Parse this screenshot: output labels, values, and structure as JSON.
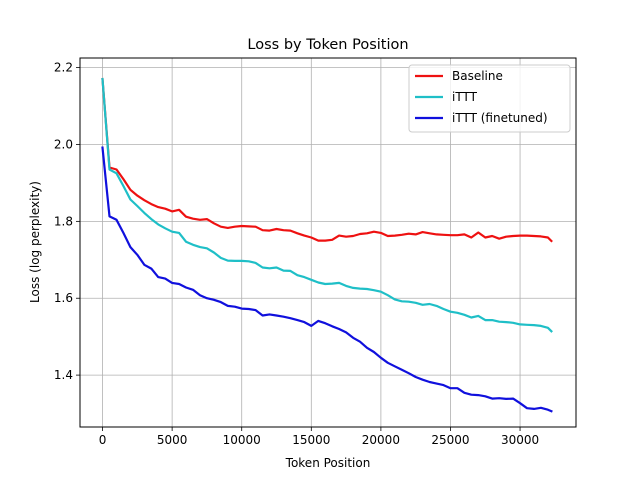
{
  "chart_data": {
    "type": "line",
    "title": "Loss by Token Position",
    "xlabel": "Token Position",
    "ylabel": "Loss (log perplexity)",
    "xlim": [
      -1620,
      34020
    ],
    "ylim": [
      1.265,
      2.225
    ],
    "xticks": [
      0,
      5000,
      10000,
      15000,
      20000,
      25000,
      30000
    ],
    "xtick_labels": [
      "0",
      "5000",
      "10000",
      "15000",
      "20000",
      "25000",
      "30000"
    ],
    "yticks": [
      1.4,
      1.6,
      1.8,
      2.0,
      2.2
    ],
    "ytick_labels": [
      "1.4",
      "1.6",
      "1.8",
      "2.0",
      "2.2"
    ],
    "grid": true,
    "legend_position": "upper right",
    "colors": {
      "Baseline": "#ee1111",
      "iTTT": "#1fbfc7",
      "iTTT (finetuned)": "#1010dd"
    },
    "series": [
      {
        "name": "Baseline",
        "color": "#ee1111",
        "x": [
          0,
          500,
          1000,
          1500,
          2000,
          2500,
          3000,
          3500,
          4000,
          4500,
          5000,
          5500,
          6000,
          6500,
          7000,
          7500,
          8000,
          8500,
          9000,
          9500,
          10000,
          10500,
          11000,
          11500,
          12000,
          12500,
          13000,
          13500,
          14000,
          14500,
          15000,
          15500,
          16000,
          16500,
          17000,
          17500,
          18000,
          18500,
          19000,
          19500,
          20000,
          20500,
          21000,
          21500,
          22000,
          22500,
          23000,
          23500,
          24000,
          24500,
          25000,
          25500,
          26000,
          26500,
          27000,
          27500,
          28000,
          28500,
          29000,
          29500,
          30000,
          30500,
          31000,
          31500,
          32000,
          32250
        ],
        "values": [
          2.17,
          1.94,
          1.935,
          1.91,
          1.882,
          1.867,
          1.855,
          1.845,
          1.837,
          1.833,
          1.826,
          1.83,
          1.812,
          1.807,
          1.804,
          1.806,
          1.795,
          1.786,
          1.783,
          1.786,
          1.788,
          1.787,
          1.786,
          1.777,
          1.776,
          1.78,
          1.777,
          1.776,
          1.769,
          1.763,
          1.758,
          1.75,
          1.75,
          1.752,
          1.763,
          1.76,
          1.762,
          1.767,
          1.769,
          1.773,
          1.77,
          1.762,
          1.763,
          1.765,
          1.768,
          1.766,
          1.772,
          1.769,
          1.766,
          1.765,
          1.764,
          1.764,
          1.766,
          1.758,
          1.771,
          1.758,
          1.762,
          1.755,
          1.76,
          1.762,
          1.763,
          1.763,
          1.762,
          1.761,
          1.758,
          1.749
        ]
      },
      {
        "name": "iTTT",
        "color": "#1fbfc7",
        "x": [
          0,
          500,
          1000,
          1500,
          2000,
          2500,
          3000,
          3500,
          4000,
          4500,
          5000,
          5500,
          6000,
          6500,
          7000,
          7500,
          8000,
          8500,
          9000,
          9500,
          10000,
          10500,
          11000,
          11500,
          12000,
          12500,
          13000,
          13500,
          14000,
          14500,
          15000,
          15500,
          16000,
          16500,
          17000,
          17500,
          18000,
          18500,
          19000,
          19500,
          20000,
          20500,
          21000,
          21500,
          22000,
          22500,
          23000,
          23500,
          24000,
          24500,
          25000,
          25500,
          26000,
          26500,
          27000,
          27500,
          28000,
          28500,
          29000,
          29500,
          30000,
          30500,
          31000,
          31500,
          32000,
          32250
        ],
        "values": [
          2.17,
          1.935,
          1.925,
          1.892,
          1.857,
          1.84,
          1.822,
          1.806,
          1.792,
          1.782,
          1.773,
          1.77,
          1.747,
          1.739,
          1.733,
          1.73,
          1.719,
          1.705,
          1.698,
          1.697,
          1.697,
          1.696,
          1.692,
          1.68,
          1.678,
          1.68,
          1.672,
          1.671,
          1.66,
          1.655,
          1.648,
          1.641,
          1.637,
          1.638,
          1.64,
          1.632,
          1.627,
          1.625,
          1.624,
          1.621,
          1.617,
          1.608,
          1.597,
          1.592,
          1.591,
          1.588,
          1.583,
          1.585,
          1.58,
          1.572,
          1.565,
          1.562,
          1.557,
          1.55,
          1.554,
          1.543,
          1.543,
          1.539,
          1.538,
          1.536,
          1.532,
          1.531,
          1.53,
          1.528,
          1.523,
          1.514
        ]
      },
      {
        "name": "iTTT (finetuned)",
        "color": "#1010dd",
        "x": [
          0,
          500,
          1000,
          1500,
          2000,
          2500,
          3000,
          3500,
          4000,
          4500,
          5000,
          5500,
          6000,
          6500,
          7000,
          7500,
          8000,
          8500,
          9000,
          9500,
          10000,
          10500,
          11000,
          11500,
          12000,
          12500,
          13000,
          13500,
          14000,
          14500,
          15000,
          15500,
          16000,
          16500,
          17000,
          17500,
          18000,
          18500,
          19000,
          19500,
          20000,
          20500,
          21000,
          21500,
          22000,
          22500,
          23000,
          23500,
          24000,
          24500,
          25000,
          25500,
          26000,
          26500,
          27000,
          27500,
          28000,
          28500,
          29000,
          29500,
          30000,
          30500,
          31000,
          31500,
          32000,
          32250
        ],
        "values": [
          1.992,
          1.813,
          1.804,
          1.77,
          1.733,
          1.713,
          1.687,
          1.677,
          1.655,
          1.651,
          1.64,
          1.637,
          1.628,
          1.622,
          1.608,
          1.6,
          1.596,
          1.59,
          1.58,
          1.578,
          1.573,
          1.572,
          1.569,
          1.555,
          1.558,
          1.555,
          1.552,
          1.548,
          1.543,
          1.538,
          1.528,
          1.541,
          1.535,
          1.527,
          1.52,
          1.511,
          1.497,
          1.487,
          1.471,
          1.46,
          1.445,
          1.432,
          1.423,
          1.414,
          1.405,
          1.395,
          1.388,
          1.382,
          1.378,
          1.374,
          1.366,
          1.366,
          1.354,
          1.349,
          1.348,
          1.345,
          1.339,
          1.34,
          1.338,
          1.339,
          1.327,
          1.314,
          1.312,
          1.315,
          1.31,
          1.306
        ]
      }
    ]
  }
}
